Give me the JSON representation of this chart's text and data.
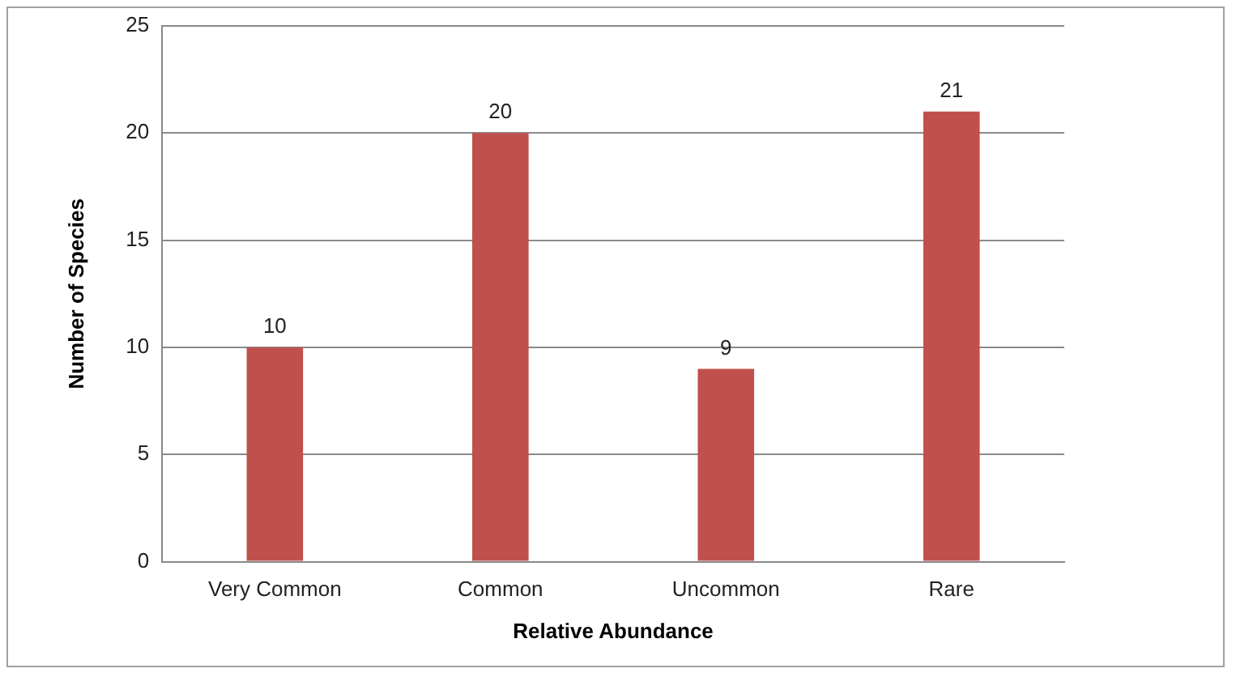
{
  "chart_data": {
    "type": "bar",
    "xlabel": "Relative Abundance",
    "ylabel": "Number of Species",
    "categories": [
      "Very Common",
      "Common",
      "Uncommon",
      "Rare"
    ],
    "values": [
      10,
      20,
      9,
      21
    ],
    "color": "#c0504d",
    "ylim": [
      0,
      25
    ],
    "yticks": [
      0,
      5,
      10,
      15,
      20,
      25
    ],
    "grid": "y",
    "data_labels": true,
    "legend": false
  }
}
